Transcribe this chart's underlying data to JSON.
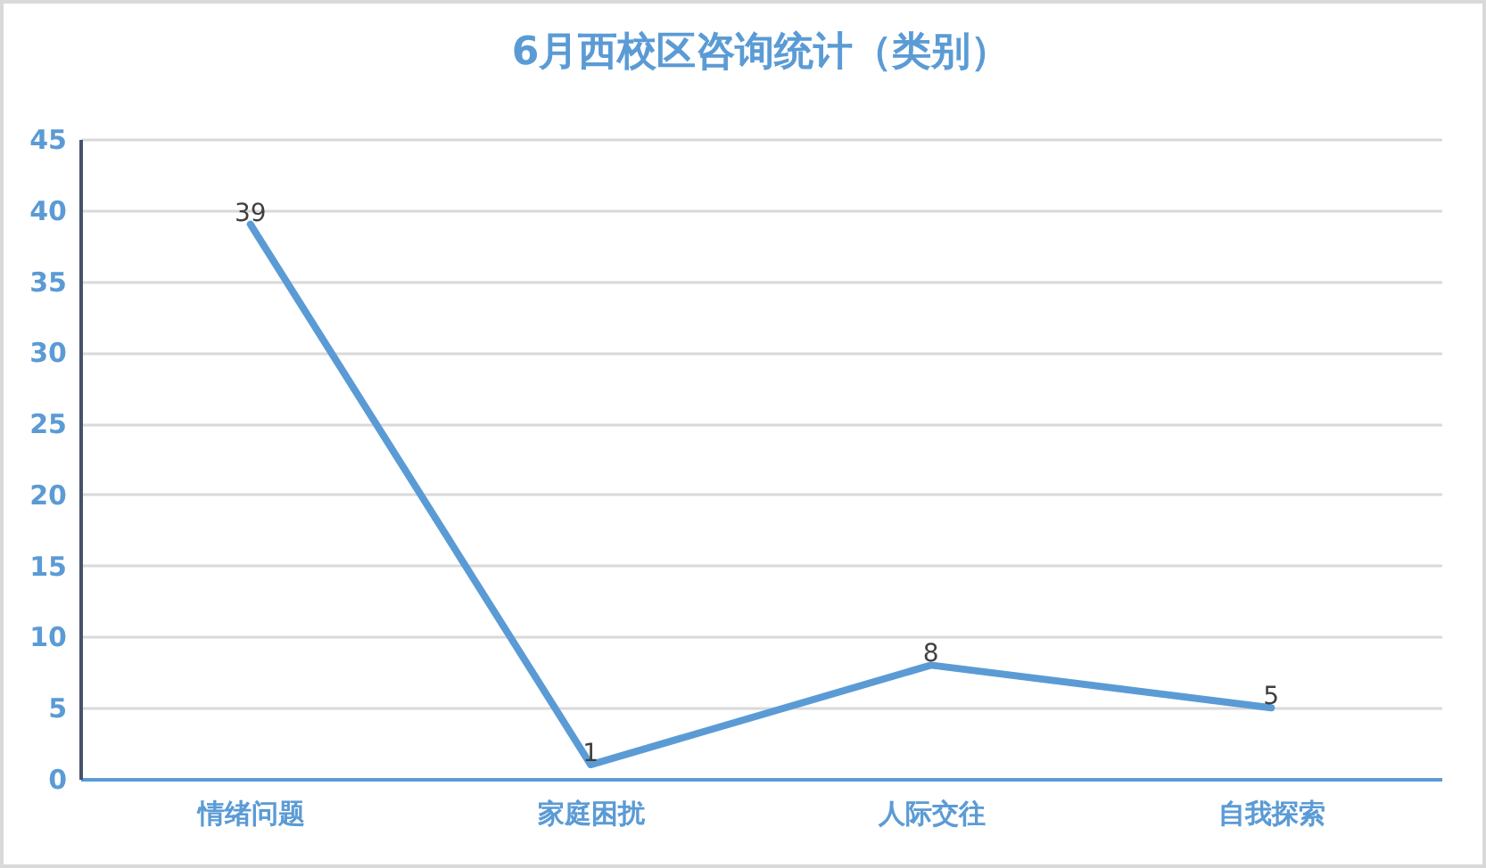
{
  "chart_data": {
    "type": "line",
    "title": "6月西校区咨询统计（类别）",
    "categories": [
      "情绪问题",
      "家庭困扰",
      "人际交往",
      "自我探索"
    ],
    "series": [
      {
        "color": "#5b9bd5",
        "values": [
          39,
          1,
          8,
          5
        ]
      }
    ],
    "ylim": [
      0,
      45
    ],
    "yticks": [
      0,
      5,
      10,
      15,
      20,
      25,
      30,
      35,
      40,
      45
    ],
    "grid": "y",
    "data_labels": true
  }
}
